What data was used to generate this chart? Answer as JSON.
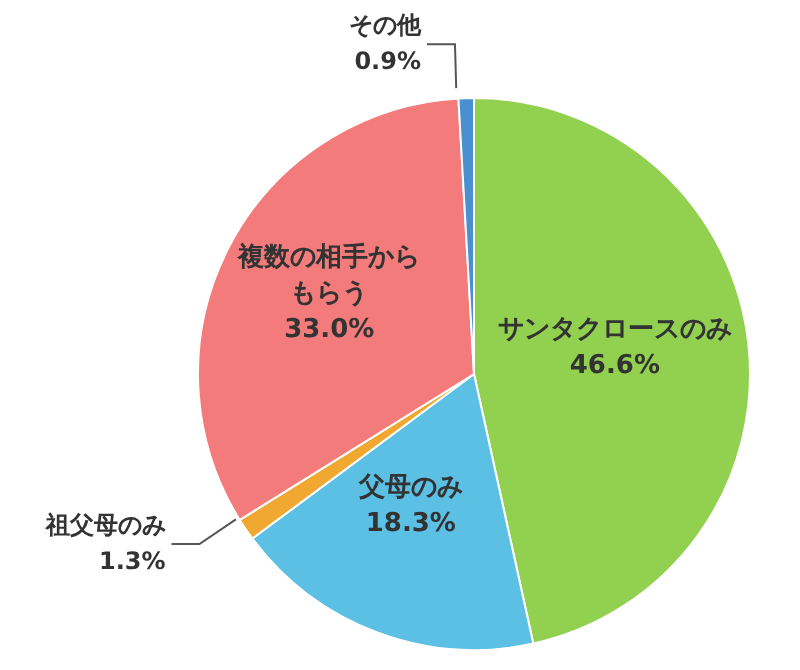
{
  "chart_data": {
    "type": "pie",
    "categories": [
      "サンタクロースのみ",
      "父母のみ",
      "祖父母のみ",
      "複数の相手からもらう",
      "その他"
    ],
    "values": [
      46.6,
      18.3,
      1.3,
      33.0,
      0.9
    ],
    "value_labels": [
      "46.6%",
      "18.3%",
      "1.3%",
      "33.0%",
      "0.9%"
    ],
    "colors": [
      "#92d050",
      "#5bc0e3",
      "#f0a830",
      "#f47b7b",
      "#4a8fd0"
    ]
  }
}
